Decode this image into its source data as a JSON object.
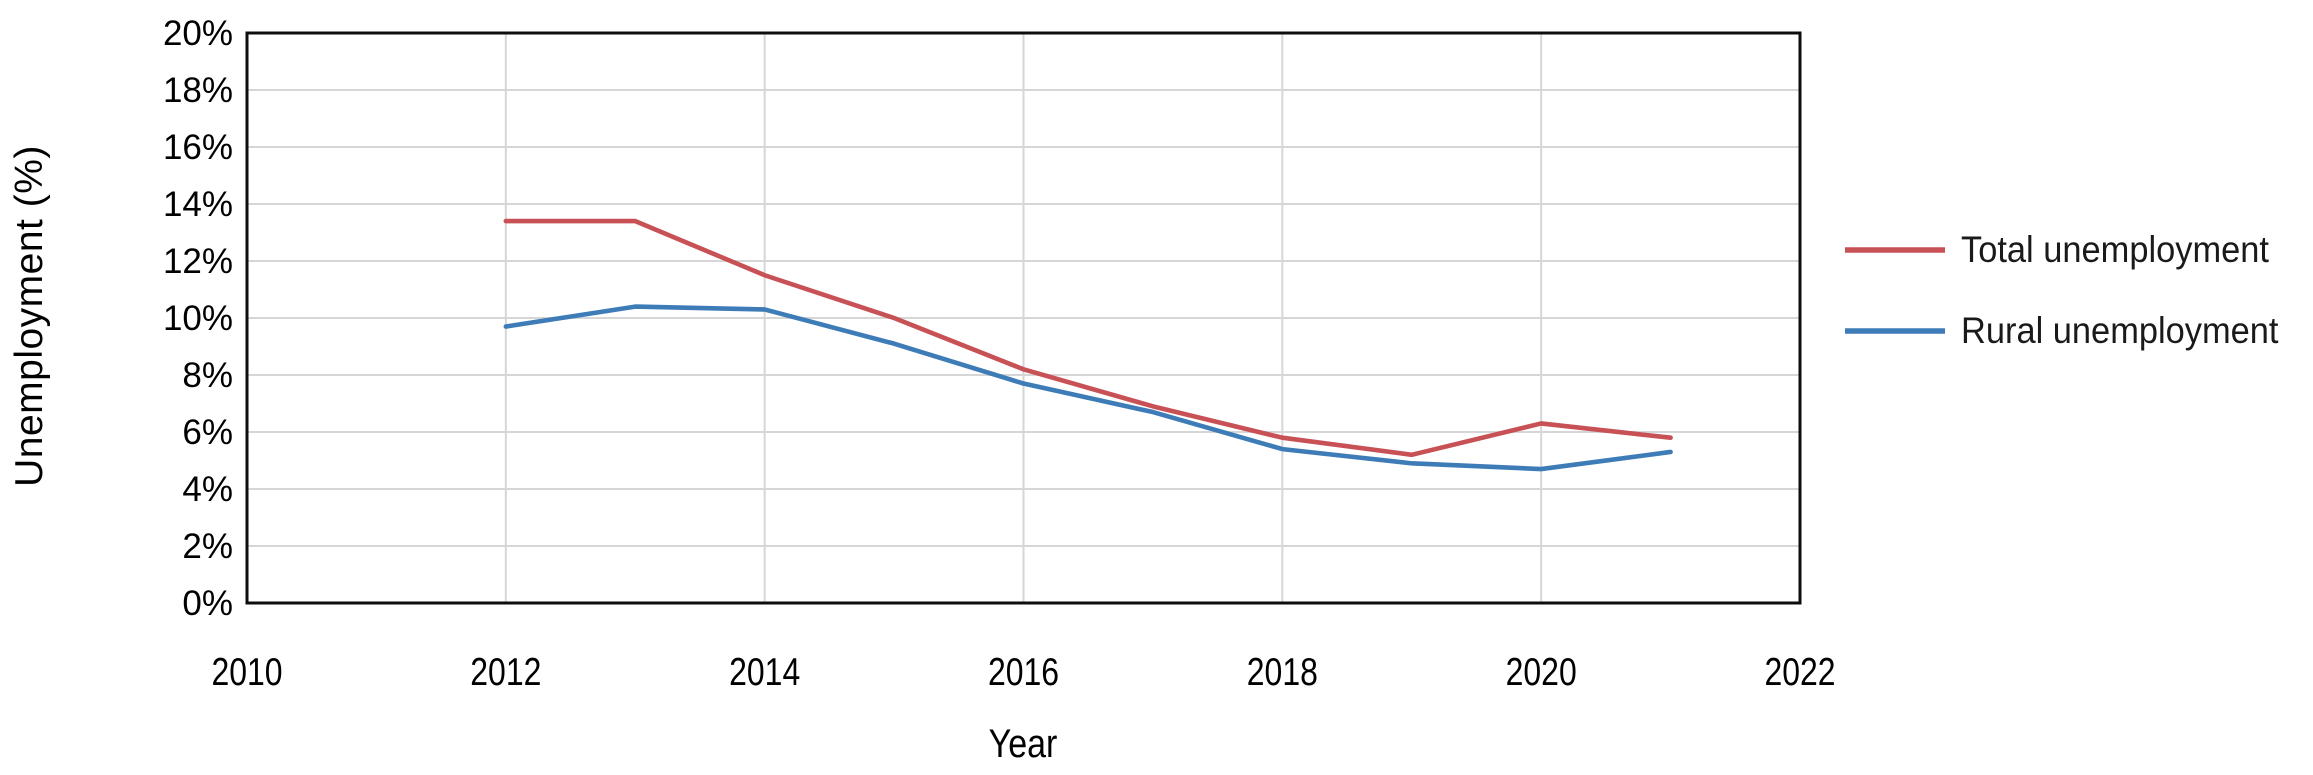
{
  "chart_data": {
    "type": "line",
    "title": "",
    "xlabel": "Year",
    "ylabel": "Unemployment (%)",
    "x": [
      2012,
      2013,
      2014,
      2015,
      2016,
      2017,
      2018,
      2019,
      2020,
      2021
    ],
    "series": [
      {
        "name": "Total unemployment",
        "color": "#c85156",
        "values": [
          13.4,
          13.4,
          11.5,
          10.0,
          8.2,
          6.9,
          5.8,
          5.2,
          6.3,
          5.8
        ]
      },
      {
        "name": "Rural unemployment",
        "color": "#3e7cb8",
        "values": [
          9.7,
          10.4,
          10.3,
          9.1,
          7.7,
          6.7,
          5.4,
          4.9,
          4.7,
          5.3
        ]
      }
    ],
    "x_axis": {
      "min": 2010,
      "max": 2022,
      "tick_step": 2,
      "tick_labels": [
        "2010",
        "2012",
        "2014",
        "2016",
        "2018",
        "2020",
        "2022"
      ]
    },
    "y_axis": {
      "min": 0,
      "max": 20,
      "tick_step": 2,
      "tick_labels": [
        "0%",
        "2%",
        "4%",
        "6%",
        "8%",
        "10%",
        "12%",
        "14%",
        "16%",
        "18%",
        "20%"
      ]
    },
    "grid": true,
    "legend_position": "right-center"
  },
  "colors": {
    "gridline": "#d6d6d6",
    "plot_border": "#0d0d0d",
    "background": "#ffffff",
    "tick_text": "#000000",
    "legend_text": "#1a1a1a"
  }
}
